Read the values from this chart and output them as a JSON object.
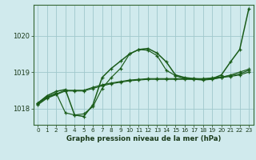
{
  "title": "Graphe pression niveau de la mer (hPa)",
  "background_color": "#d0eaed",
  "grid_color": "#a0c8cc",
  "line_color": "#1a5c1a",
  "xlabel_color": "#1a3a1a",
  "x_ticks": [
    0,
    1,
    2,
    3,
    4,
    5,
    6,
    7,
    8,
    9,
    10,
    11,
    12,
    13,
    14,
    15,
    16,
    17,
    18,
    19,
    20,
    21,
    22,
    23
  ],
  "y_ticks": [
    1018,
    1019,
    1020
  ],
  "ylim": [
    1017.55,
    1020.85
  ],
  "xlim": [
    -0.5,
    23.5
  ],
  "series": [
    {
      "x": [
        0,
        1,
        2,
        3,
        4,
        5,
        6,
        7,
        8,
        9,
        10,
        11,
        12,
        13,
        14,
        15,
        16,
        17,
        18,
        19,
        20,
        21,
        22,
        23
      ],
      "y": [
        1018.1,
        1018.28,
        1018.38,
        1018.48,
        1018.48,
        1018.48,
        1018.55,
        1018.62,
        1018.68,
        1018.72,
        1018.76,
        1018.78,
        1018.8,
        1018.8,
        1018.8,
        1018.8,
        1018.8,
        1018.8,
        1018.8,
        1018.82,
        1018.85,
        1018.88,
        1018.92,
        1019.0
      ]
    },
    {
      "x": [
        0,
        1,
        2,
        3,
        4,
        5,
        6,
        7,
        8,
        9,
        10,
        11,
        12,
        13,
        14,
        15,
        16,
        17,
        18,
        19,
        20,
        21,
        22,
        23
      ],
      "y": [
        1018.12,
        1018.3,
        1018.4,
        1018.5,
        1018.5,
        1018.5,
        1018.58,
        1018.65,
        1018.7,
        1018.74,
        1018.78,
        1018.8,
        1018.82,
        1018.82,
        1018.82,
        1018.82,
        1018.82,
        1018.82,
        1018.82,
        1018.84,
        1018.87,
        1018.9,
        1018.95,
        1019.05
      ]
    },
    {
      "x": [
        0,
        1,
        2,
        3,
        4,
        5,
        6,
        7,
        8,
        9,
        10,
        11,
        12,
        13,
        14,
        15,
        16,
        17,
        18,
        19,
        20,
        21,
        22,
        23
      ],
      "y": [
        1018.15,
        1018.32,
        1018.42,
        1017.88,
        1017.82,
        1017.85,
        1018.05,
        1018.55,
        1018.85,
        1019.1,
        1019.5,
        1019.62,
        1019.6,
        1019.45,
        1019.05,
        1018.9,
        1018.82,
        1018.8,
        1018.78,
        1018.8,
        1018.85,
        1018.92,
        1019.0,
        1019.08
      ]
    },
    {
      "x": [
        0,
        1,
        2,
        3,
        4,
        5,
        6,
        7,
        8,
        9,
        10,
        11,
        12,
        13,
        14,
        15,
        16,
        17,
        18,
        19,
        20,
        21,
        22,
        23
      ],
      "y": [
        1018.15,
        1018.35,
        1018.47,
        1018.52,
        1017.82,
        1017.78,
        1018.1,
        1018.85,
        1019.1,
        1019.3,
        1019.5,
        1019.62,
        1019.65,
        1019.52,
        1019.28,
        1018.92,
        1018.85,
        1018.82,
        1018.8,
        1018.82,
        1018.92,
        1019.28,
        1019.62,
        1020.75
      ]
    }
  ]
}
